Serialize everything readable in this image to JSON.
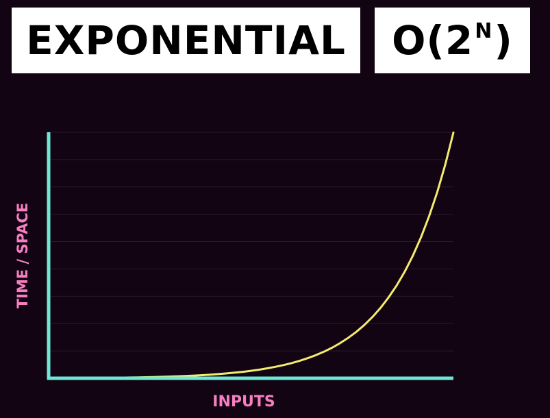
{
  "header": {
    "title": "EXPONENTIAL",
    "notation_prefix": "O(2",
    "notation_superscript": "N",
    "notation_suffix": ")"
  },
  "chart_data": {
    "type": "line",
    "title": "",
    "xlabel": "INPUTS",
    "ylabel": "TIME / SPACE",
    "xlim": [
      0,
      10
    ],
    "ylim": [
      0,
      1024
    ],
    "grid": true,
    "series": [
      {
        "color": "#f5ec6e",
        "x": [
          0,
          0.2,
          0.4,
          0.6,
          0.8,
          1,
          1.2,
          1.4,
          1.6,
          1.8,
          2,
          2.2,
          2.4,
          2.6,
          2.8,
          3,
          3.2,
          3.4,
          3.6,
          3.8,
          4,
          4.2,
          4.4,
          4.6,
          4.8,
          5,
          5.2,
          5.4,
          5.6,
          5.8,
          6,
          6.2,
          6.4,
          6.6,
          6.8,
          7,
          7.2,
          7.4,
          7.6,
          7.8,
          8,
          8.2,
          8.4,
          8.6,
          8.8,
          9,
          9.2,
          9.4,
          9.6,
          9.8,
          10
        ],
        "y": [
          0,
          0.15,
          0.32,
          0.52,
          0.74,
          1,
          1.3,
          1.64,
          2.03,
          2.48,
          3,
          3.6,
          4.28,
          5.06,
          5.96,
          7,
          8.19,
          9.56,
          11.13,
          12.93,
          15,
          17.38,
          20.11,
          23.25,
          26.86,
          31,
          35.76,
          41.22,
          47.5,
          54.71,
          63,
          72.52,
          83.45,
          96.01,
          110.43,
          127,
          146.03,
          167.9,
          193.02,
          221.86,
          255,
          293.07,
          336.79,
          387.03,
          444.73,
          511,
          587.13,
          674.58,
          775.05,
          890.45,
          1023
        ]
      }
    ],
    "colors": {
      "background": "#130413",
      "axis": "#6ee8d4",
      "grid": "#2a1a2a",
      "curve": "#f5ec6e",
      "label": "#f57fc0"
    }
  }
}
